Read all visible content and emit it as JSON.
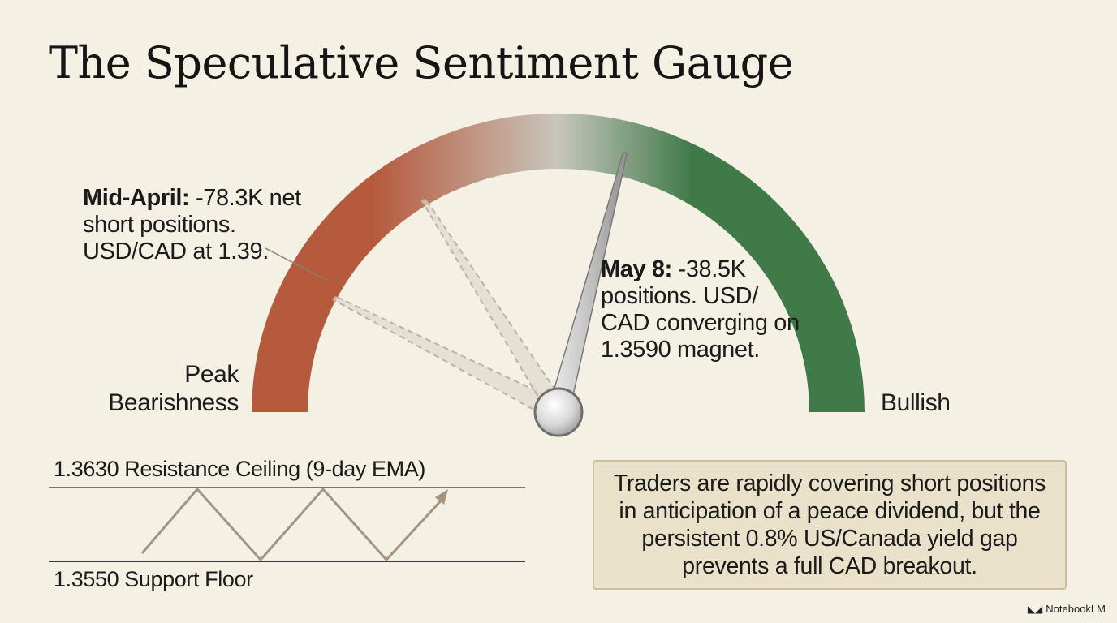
{
  "title": "The Speculative Sentiment Gauge",
  "gauge": {
    "left_label": "Peak\nBearishness",
    "right_label": "Bullish",
    "needle_value": 0.58,
    "ghost_values": [
      0.15,
      0.32
    ],
    "colors": {
      "bearish": "#b65a3e",
      "neutral": "#c8c6bc",
      "bullish": "#3f7a48"
    }
  },
  "annotations": {
    "mid_april": {
      "label": "Mid-April:",
      "text": " -78.3K net short positions. USD/CAD at 1.39."
    },
    "may_8": {
      "label": "May 8:",
      "text": " -38.5K positions. USD/ CAD converging on 1.3590 magnet."
    }
  },
  "range": {
    "resistance_label": "1.3630 Resistance Ceiling (9-day EMA)",
    "support_label": "1.3550 Support Floor"
  },
  "summary": "Traders are rapidly covering short positions in anticipation of a peace dividend, but the persistent 0.8% US/Canada yield gap prevents a full CAD breakout.",
  "branding": {
    "name": "NotebookLM"
  }
}
